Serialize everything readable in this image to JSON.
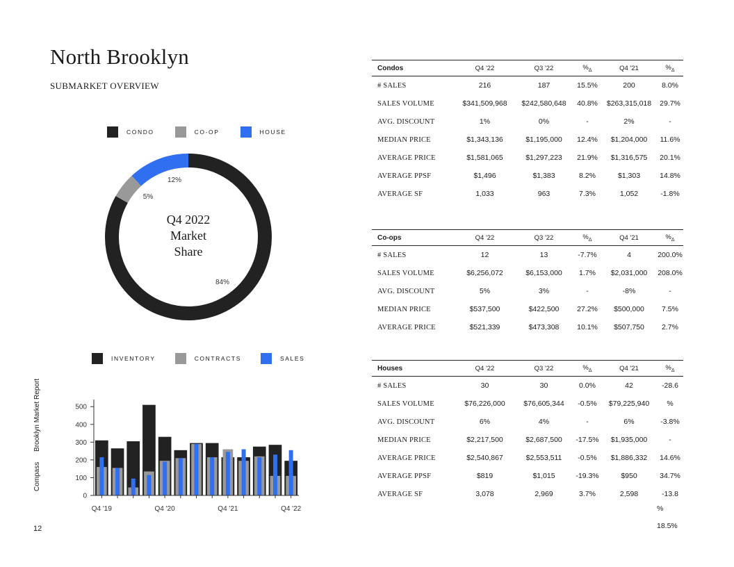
{
  "header": {
    "title": "North Brooklyn",
    "subtitle": "SUBMARKET OVERVIEW"
  },
  "colors": {
    "condo": "#222222",
    "coop": "#999999",
    "house": "#2f6ff0",
    "inventory": "#222222",
    "contracts": "#999999",
    "sales": "#2f6ff0"
  },
  "donut": {
    "legend": [
      "CONDO",
      "CO-OP",
      "HOUSE"
    ],
    "center_line1": "Q4 2022",
    "center_line2": "Market",
    "center_line3": "Share",
    "label_condo": "84%",
    "label_coop": "5%",
    "label_house": "12%"
  },
  "bar_legend": [
    "INVENTORY",
    "CONTRACTS",
    "SALES"
  ],
  "side_label": {
    "brand": "Compass",
    "report": "Brooklyn Market Report"
  },
  "page_number": "12",
  "chart_data": [
    {
      "type": "pie",
      "title": "Q4 2022 Market Share",
      "categories": [
        "CONDO",
        "CO-OP",
        "HOUSE"
      ],
      "values": [
        84,
        5,
        12
      ]
    },
    {
      "type": "bar",
      "categories": [
        "Q4 '19",
        "Q1 '20",
        "Q2 '20",
        "Q3 '20",
        "Q4 '20",
        "Q1 '21",
        "Q2 '21",
        "Q3 '21",
        "Q4 '21",
        "Q1 '22",
        "Q2 '22",
        "Q3 '22",
        "Q4 '22"
      ],
      "x_tick_labels": [
        "Q4 '19",
        "Q4 '20",
        "Q4 '21",
        "Q4 '22"
      ],
      "yticks": [
        0,
        100,
        200,
        300,
        400,
        500
      ],
      "ylim": [
        0,
        540
      ],
      "series": [
        {
          "name": "INVENTORY",
          "values": [
            310,
            265,
            305,
            510,
            330,
            255,
            295,
            295,
            215,
            215,
            275,
            285,
            195
          ]
        },
        {
          "name": "CONTRACTS",
          "values": [
            160,
            155,
            45,
            135,
            195,
            210,
            290,
            215,
            260,
            195,
            220,
            110,
            110
          ]
        },
        {
          "name": "SALES",
          "values": [
            215,
            155,
            95,
            115,
            190,
            210,
            290,
            215,
            245,
            260,
            215,
            230,
            255
          ]
        }
      ]
    }
  ],
  "tables": [
    {
      "name": "Condos",
      "headers": [
        "Q4 '22",
        "Q3 '22",
        "%",
        "Q4 '21",
        "%"
      ],
      "rows": [
        [
          "# SALES",
          "216",
          "187",
          "15.5%",
          "200",
          "8.0%"
        ],
        [
          "SALES VOLUME",
          "$341,509,968",
          "$242,580,648",
          "40.8%",
          "$263,315,018",
          "29.7%"
        ],
        [
          "AVG. DISCOUNT",
          "1%",
          "0%",
          "-",
          "2%",
          "-"
        ],
        [
          "MEDIAN PRICE",
          "$1,343,136",
          "$1,195,000",
          "12.4%",
          "$1,204,000",
          "11.6%"
        ],
        [
          "AVERAGE PRICE",
          "$1,581,065",
          "$1,297,223",
          "21.9%",
          "$1,316,575",
          "20.1%"
        ],
        [
          "AVERAGE PPSF",
          "$1,496",
          "$1,383",
          "8.2%",
          "$1,303",
          "14.8%"
        ],
        [
          "AVERAGE SF",
          "1,033",
          "963",
          "7.3%",
          "1,052",
          "-1.8%"
        ]
      ]
    },
    {
      "name": "Co-ops",
      "headers": [
        "Q4 '22",
        "Q3 '22",
        "%",
        "Q4 '21",
        "%"
      ],
      "rows": [
        [
          "# SALES",
          "12",
          "13",
          "-7.7%",
          "4",
          "200.0%"
        ],
        [
          "SALES VOLUME",
          "$6,256,072",
          "$6,153,000",
          "1.7%",
          "$2,031,000",
          "208.0%"
        ],
        [
          "AVG. DISCOUNT",
          "5%",
          "3%",
          "-",
          "-8%",
          "-"
        ],
        [
          "MEDIAN PRICE",
          "$537,500",
          "$422,500",
          "27.2%",
          "$500,000",
          "7.5%"
        ],
        [
          "AVERAGE PRICE",
          "$521,339",
          "$473,308",
          "10.1%",
          "$507,750",
          "2.7%"
        ]
      ]
    },
    {
      "name": "Houses",
      "headers": [
        "Q4 '22",
        "Q3 '22",
        "%",
        "Q4 '21",
        "%"
      ],
      "rows": [
        [
          "# SALES",
          "30",
          "30",
          "0.0%",
          "42",
          "-28.6"
        ],
        [
          "SALES VOLUME",
          "$76,226,000",
          "$76,605,344",
          "-0.5%",
          "$79,225,940",
          "%"
        ],
        [
          "AVG. DISCOUNT",
          "6%",
          "4%",
          "-",
          "6%",
          "-3.8%"
        ],
        [
          "MEDIAN PRICE",
          "$2,217,500",
          "$2,687,500",
          "-17.5%",
          "$1,935,000",
          "-"
        ],
        [
          "AVERAGE PRICE",
          "$2,540,867",
          "$2,553,511",
          "-0.5%",
          "$1,886,332",
          "14.6%"
        ],
        [
          "AVERAGE PPSF",
          "$819",
          "$1,015",
          "-19.3%",
          "$950",
          "34.7%"
        ],
        [
          "AVERAGE SF",
          "3,078",
          "2,969",
          "3.7%",
          "2,598",
          "-13.8"
        ]
      ],
      "overflow": [
        "%",
        "18.5%"
      ]
    }
  ]
}
